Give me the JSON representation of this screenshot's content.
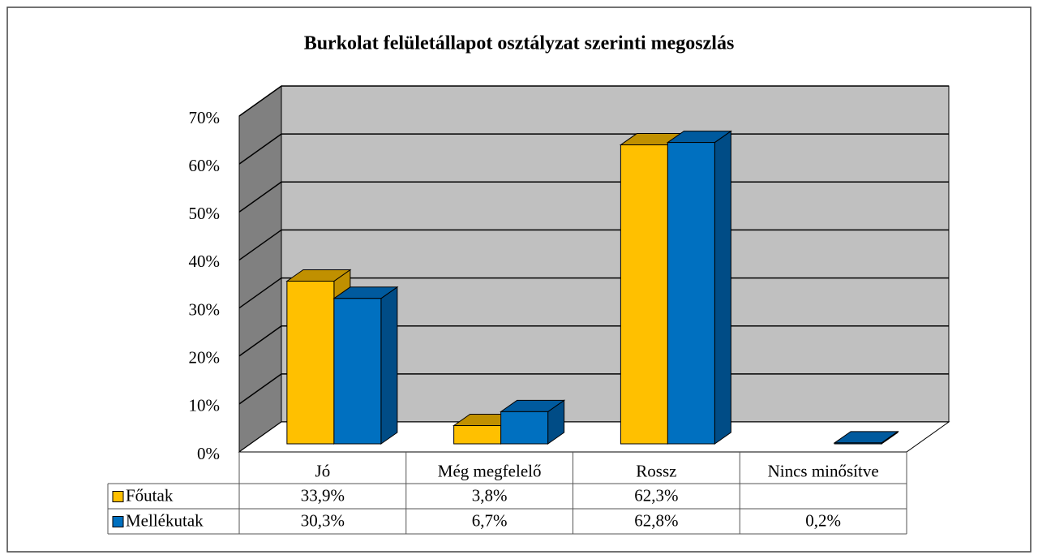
{
  "chart_data": {
    "type": "bar3d",
    "title": "Burkolat felületállapot osztályzat szerinti megoszlás",
    "categories": [
      "Jó",
      "Még megfelelő",
      "Rossz",
      "Nincs minősítve"
    ],
    "series": [
      {
        "name": "Főutak",
        "color": "#FFC000",
        "values": [
          33.9,
          3.8,
          62.3,
          null
        ],
        "value_labels": [
          "33,9%",
          "3,8%",
          "62,3%",
          null
        ]
      },
      {
        "name": "Mellékutak",
        "color": "#0070C0",
        "values": [
          30.3,
          6.7,
          62.8,
          0.2
        ],
        "value_labels": [
          "30,3%",
          "6,7%",
          "62,8%",
          "0,2%"
        ]
      }
    ],
    "ylim": [
      0,
      70
    ],
    "yticks": [
      {
        "value": 0,
        "label": "0%"
      },
      {
        "value": 10,
        "label": "10%"
      },
      {
        "value": 20,
        "label": "20%"
      },
      {
        "value": 30,
        "label": "30%"
      },
      {
        "value": 40,
        "label": "40%"
      },
      {
        "value": 50,
        "label": "50%"
      },
      {
        "value": 60,
        "label": "60%"
      },
      {
        "value": 70,
        "label": "70%"
      }
    ],
    "grid": true,
    "data_table": true
  }
}
